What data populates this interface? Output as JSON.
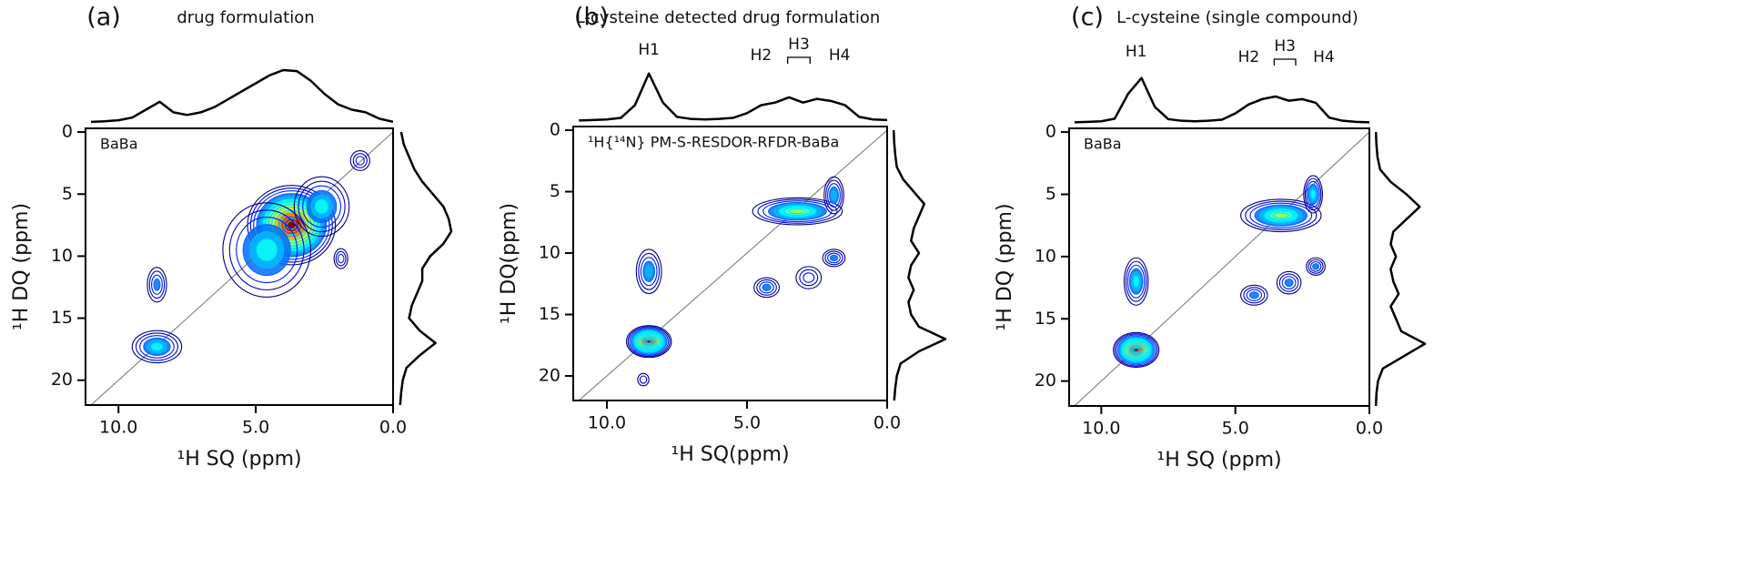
{
  "chart_data": [
    {
      "type": "contour",
      "panel_label": "(a)",
      "title": "drug formulation",
      "inset_label": "BaBa",
      "x_label": "¹H SQ (ppm)",
      "y_label": "¹H DQ (ppm)",
      "xlim": [
        11.2,
        0
      ],
      "xticks": [
        {
          "value": 10,
          "label": "10.0"
        },
        {
          "value": 5,
          "label": "5.0"
        },
        {
          "value": 0,
          "label": "0.0"
        }
      ],
      "ylim": [
        -0.3,
        22
      ],
      "yticks": [
        0,
        5,
        10,
        15,
        20
      ],
      "annotations": [],
      "peaks": {
        "x": [
          8.6,
          8.6,
          3.7,
          4.6,
          2.6,
          1.2,
          1.9
        ],
        "y": [
          17.3,
          12.3,
          7.5,
          9.5,
          6.0,
          2.3,
          10.2
        ],
        "xwidth": [
          0.9,
          0.35,
          1.6,
          1.6,
          1.0,
          0.35,
          0.25
        ],
        "ywidth": [
          1.3,
          1.4,
          3.2,
          3.8,
          2.4,
          0.8,
          0.8
        ],
        "intensity": [
          0.45,
          0.25,
          1.0,
          0.45,
          0.45,
          0.2,
          0.2
        ]
      },
      "top_projection": {
        "x": [
          11,
          10.5,
          10,
          9.5,
          9,
          8.5,
          8,
          7.5,
          7,
          6.5,
          6,
          5.5,
          5,
          4.5,
          4,
          3.5,
          3,
          2.5,
          2,
          1.5,
          1,
          0.5,
          0
        ],
        "values": [
          0.02,
          0.03,
          0.05,
          0.1,
          0.25,
          0.4,
          0.2,
          0.15,
          0.2,
          0.3,
          0.45,
          0.6,
          0.75,
          0.9,
          1.0,
          0.98,
          0.8,
          0.55,
          0.35,
          0.25,
          0.2,
          0.08,
          0.02
        ]
      },
      "right_projection": {
        "y": [
          0,
          1,
          2,
          3,
          4,
          5,
          6,
          7,
          8,
          9,
          10,
          11,
          12,
          13,
          14,
          15,
          16,
          17,
          18,
          19,
          20,
          21,
          22
        ],
        "values": [
          0.05,
          0.1,
          0.2,
          0.3,
          0.45,
          0.65,
          0.85,
          0.95,
          1.0,
          0.85,
          0.6,
          0.45,
          0.45,
          0.35,
          0.25,
          0.2,
          0.4,
          0.7,
          0.4,
          0.15,
          0.08,
          0.05,
          0.03
        ]
      }
    },
    {
      "type": "contour",
      "panel_label": "(b)",
      "title": "L-cysteine detected drug formulation",
      "inset_label": "¹H{¹⁴N} PM-S-RESDOR-RFDR-BaBa",
      "x_label": "¹H SQ(ppm)",
      "y_label": "¹H DQ(ppm)",
      "xlim": [
        11.2,
        0
      ],
      "xticks": [
        {
          "value": 10,
          "label": "10.0"
        },
        {
          "value": 5,
          "label": "5.0"
        },
        {
          "value": 0,
          "label": "0.0"
        }
      ],
      "ylim": [
        -0.3,
        22
      ],
      "yticks": [
        0,
        5,
        10,
        15,
        20
      ],
      "annotations": [
        {
          "text": "H1",
          "x": 8.5
        },
        {
          "text": "H2",
          "x": 4.5
        },
        {
          "text": "H3",
          "x": 3.15
        },
        {
          "text": "H4",
          "x": 1.7
        }
      ],
      "peaks": {
        "x": [
          8.5,
          8.5,
          3.2,
          1.9,
          4.3,
          2.8,
          1.9,
          8.7
        ],
        "y": [
          17.2,
          11.5,
          6.6,
          5.3,
          12.8,
          12.0,
          10.4,
          20.3
        ],
        "xwidth": [
          0.8,
          0.45,
          1.6,
          0.35,
          0.45,
          0.45,
          0.4,
          0.2
        ],
        "ywidth": [
          1.3,
          1.8,
          1.1,
          1.5,
          0.8,
          0.9,
          0.7,
          0.5
        ],
        "intensity": [
          1.0,
          0.35,
          0.55,
          0.35,
          0.3,
          0.2,
          0.3,
          0.1
        ]
      },
      "top_projection": {
        "x": [
          11,
          10.5,
          10,
          9.5,
          9,
          8.5,
          8,
          7.5,
          7,
          6.5,
          6,
          5.5,
          5,
          4.5,
          4,
          3.5,
          3,
          2.5,
          2,
          1.5,
          1,
          0.5,
          0
        ],
        "values": [
          0.01,
          0.02,
          0.03,
          0.06,
          0.3,
          0.9,
          0.35,
          0.08,
          0.04,
          0.03,
          0.04,
          0.06,
          0.15,
          0.3,
          0.35,
          0.45,
          0.35,
          0.42,
          0.38,
          0.3,
          0.08,
          0.03,
          0.02
        ]
      },
      "right_projection": {
        "y": [
          0,
          1,
          2,
          3,
          4,
          5,
          6,
          7,
          8,
          9,
          10,
          11,
          12,
          13,
          14,
          15,
          16,
          17,
          18,
          19,
          20,
          21,
          22
        ],
        "values": [
          0.02,
          0.03,
          0.05,
          0.08,
          0.2,
          0.4,
          0.6,
          0.5,
          0.4,
          0.35,
          0.5,
          0.35,
          0.3,
          0.4,
          0.3,
          0.35,
          0.5,
          1.0,
          0.5,
          0.15,
          0.08,
          0.05,
          0.03
        ]
      }
    },
    {
      "type": "contour",
      "panel_label": "(c)",
      "title": "L-cysteine (single compound)",
      "inset_label": "BaBa",
      "x_label": "¹H SQ (ppm)",
      "y_label": "¹H DQ (ppm)",
      "xlim": [
        11.2,
        0
      ],
      "xticks": [
        {
          "value": 10,
          "label": "10.0"
        },
        {
          "value": 5,
          "label": "5.0"
        },
        {
          "value": 0,
          "label": "0.0"
        }
      ],
      "ylim": [
        -0.3,
        22
      ],
      "yticks": [
        0,
        5,
        10,
        15,
        20
      ],
      "annotations": [
        {
          "text": "H1",
          "x": 8.7
        },
        {
          "text": "H2",
          "x": 4.5
        },
        {
          "text": "H3",
          "x": 3.15
        },
        {
          "text": "H4",
          "x": 1.7
        }
      ],
      "peaks": {
        "x": [
          8.7,
          8.7,
          3.3,
          2.1,
          4.3,
          3.0,
          2.0
        ],
        "y": [
          17.5,
          12.0,
          6.7,
          5.0,
          13.1,
          12.1,
          10.8
        ],
        "xwidth": [
          0.85,
          0.45,
          1.5,
          0.35,
          0.5,
          0.45,
          0.35
        ],
        "ywidth": [
          1.4,
          1.9,
          1.3,
          1.5,
          0.8,
          0.9,
          0.7
        ],
        "intensity": [
          1.0,
          0.4,
          0.6,
          0.4,
          0.3,
          0.25,
          0.3
        ]
      },
      "top_projection": {
        "x": [
          11,
          10.5,
          10,
          9.5,
          9,
          8.5,
          8,
          7.5,
          7,
          6.5,
          6,
          5.5,
          5,
          4.5,
          4,
          3.5,
          3,
          2.5,
          2,
          1.5,
          1,
          0.5,
          0
        ],
        "values": [
          0.01,
          0.02,
          0.03,
          0.08,
          0.55,
          0.85,
          0.3,
          0.07,
          0.04,
          0.03,
          0.04,
          0.06,
          0.18,
          0.35,
          0.45,
          0.5,
          0.42,
          0.45,
          0.38,
          0.1,
          0.04,
          0.02,
          0.01
        ]
      },
      "right_projection": {
        "y": [
          0,
          1,
          2,
          3,
          4,
          5,
          6,
          7,
          8,
          9,
          10,
          11,
          12,
          13,
          14,
          15,
          16,
          17,
          18,
          19,
          20,
          21,
          22
        ],
        "values": [
          0.02,
          0.03,
          0.05,
          0.1,
          0.3,
          0.6,
          0.85,
          0.6,
          0.35,
          0.3,
          0.4,
          0.3,
          0.35,
          0.45,
          0.3,
          0.4,
          0.5,
          0.95,
          0.55,
          0.15,
          0.06,
          0.03,
          0.02
        ]
      }
    }
  ]
}
